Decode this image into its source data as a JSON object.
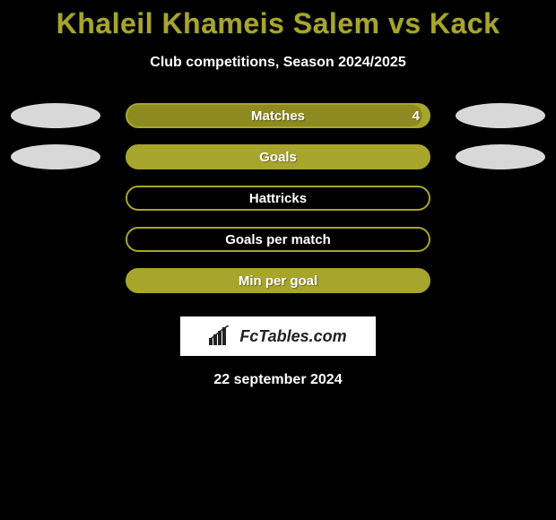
{
  "title": "Khaleil Khameis Salem vs Kack",
  "subtitle": "Club competitions, Season 2024/2025",
  "date": "22 september 2024",
  "logo": {
    "text": "FcTables.com",
    "text_color": "#222222",
    "bg_color": "#ffffff"
  },
  "colors": {
    "background": "#000000",
    "title_color": "#a7a52c",
    "subtitle_color": "#ffffff",
    "date_color": "#ffffff",
    "pill_accent": "#a7a52c",
    "pill_label_color": "#ffffff",
    "blob_color": "#d8d8d8"
  },
  "rows": [
    {
      "label": "Matches",
      "value": "4",
      "pill_type": "solid",
      "fill_percent": 98,
      "fill_color": "#8d8b1f",
      "show_left_blob": true,
      "show_right_blob": true
    },
    {
      "label": "Goals",
      "value": "",
      "pill_type": "solid",
      "fill_percent": 100,
      "fill_color": "#a7a52c",
      "show_left_blob": true,
      "show_right_blob": true
    },
    {
      "label": "Hattricks",
      "value": "",
      "pill_type": "outline",
      "fill_percent": 0,
      "fill_color": "",
      "show_left_blob": false,
      "show_right_blob": false
    },
    {
      "label": "Goals per match",
      "value": "",
      "pill_type": "outline",
      "fill_percent": 0,
      "fill_color": "",
      "show_left_blob": false,
      "show_right_blob": false
    },
    {
      "label": "Min per goal",
      "value": "",
      "pill_type": "solid",
      "fill_percent": 100,
      "fill_color": "#a7a52c",
      "show_left_blob": false,
      "show_right_blob": false
    }
  ]
}
